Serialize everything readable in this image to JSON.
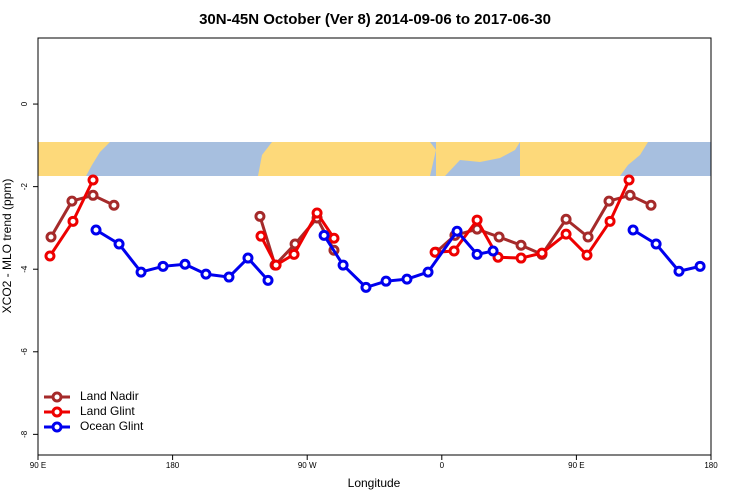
{
  "chart_data": {
    "type": "line",
    "title": "30N-45N October (Ver 8)   2014-09-06 to 2017-06-30",
    "x_label": "Longitude",
    "y_label": "XCO2 - MLO trend (ppm)",
    "xlim": [
      90,
      540
    ],
    "ylim": [
      -8.5,
      1.6
    ],
    "xticks": [
      {
        "value": 90,
        "label": "90 E"
      },
      180,
      {
        "value": 270,
        "label": "90 W"
      },
      {
        "value": 360,
        "label": "0"
      },
      {
        "value": 450,
        "label": "90 E"
      },
      {
        "value": 540,
        "label": "180"
      }
    ],
    "yticks": [
      0,
      -2,
      -4,
      -6,
      -8
    ],
    "legend": "bottom-left",
    "series": [
      {
        "name": "Land Nadir",
        "color": "#a52a2a",
        "x": [
          98.7,
          112.7,
          126.8,
          140.8,
          null,
          238.4,
          248.5,
          261.9,
          276.6,
          287.9,
          null,
          356.1,
          368.8,
          383.6,
          398.3,
          413.0,
          427.0,
          443.1,
          457.8,
          471.8,
          485.9,
          499.9
        ],
        "values": [
          -3.22,
          -2.35,
          -2.21,
          -2.45,
          null,
          -2.72,
          -3.9,
          -3.39,
          -2.76,
          -3.54,
          null,
          -3.59,
          -3.18,
          -3.03,
          -3.22,
          -3.42,
          -3.64,
          -2.79,
          -3.22,
          -2.35,
          -2.21,
          -2.45
        ]
      },
      {
        "name": "Land Glint",
        "color": "#ee0000",
        "x": [
          98.0,
          113.4,
          126.8,
          null,
          239.1,
          249.2,
          261.2,
          276.6,
          287.9,
          null,
          355.5,
          368.2,
          383.6,
          397.6,
          413.0,
          427.0,
          443.1,
          457.1,
          472.5,
          485.2
        ],
        "values": [
          -3.68,
          -2.84,
          -1.84,
          null,
          -3.2,
          -3.9,
          -3.64,
          -2.64,
          -3.25,
          null,
          -3.59,
          -3.56,
          -2.81,
          -3.71,
          -3.73,
          -3.61,
          -3.15,
          -3.66,
          -2.84,
          -1.84
        ]
      },
      {
        "name": "Ocean Glint",
        "color": "#0000ee",
        "x": [
          128.8,
          144.2,
          158.9,
          173.6,
          188.3,
          202.3,
          217.7,
          230.4,
          243.8,
          null,
          281.3,
          294.0,
          309.3,
          322.7,
          336.7,
          350.8,
          370.2,
          383.6,
          394.3,
          null,
          487.9,
          503.3,
          518.6,
          532.7
        ],
        "values": [
          -3.05,
          -3.39,
          -4.07,
          -3.93,
          -3.88,
          -4.12,
          -4.19,
          -3.73,
          -4.27,
          null,
          -3.18,
          -3.9,
          -4.44,
          -4.29,
          -4.24,
          -4.07,
          -3.08,
          -3.64,
          -3.56,
          null,
          -3.05,
          -3.39,
          -4.05,
          -3.93
        ]
      }
    ]
  }
}
